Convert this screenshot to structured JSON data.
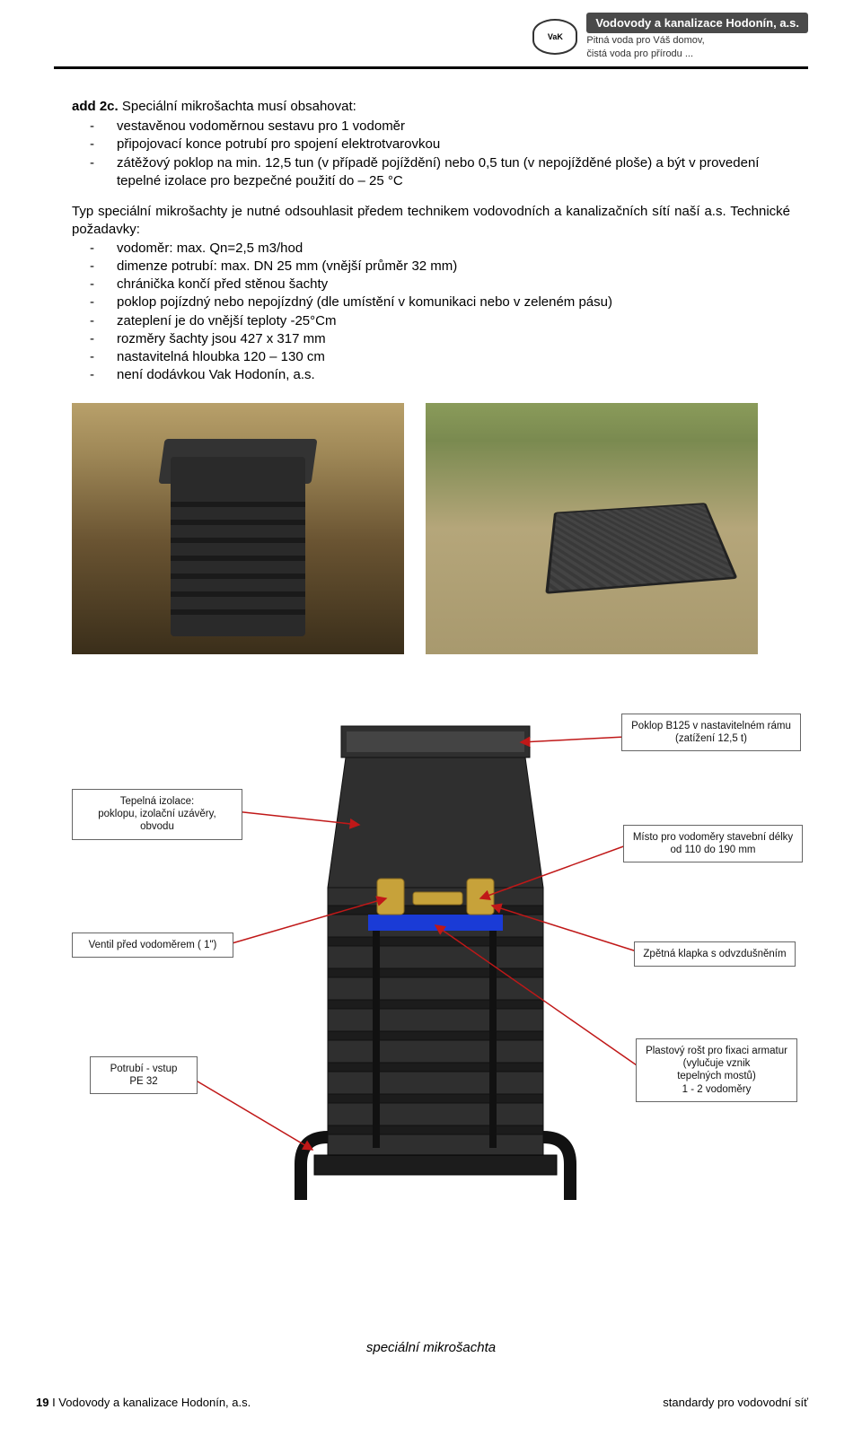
{
  "header": {
    "logo_text": "VaK",
    "brand": "Vodovody a kanalizace Hodonín, a.s.",
    "slogan1": "Pitná voda pro Váš domov,",
    "slogan2": "čistá voda pro přírodu ..."
  },
  "section": {
    "heading_prefix": "add 2c.",
    "heading_text": " Speciální mikrošachta musí obsahovat:",
    "list1": [
      "vestavěnou vodoměrnou sestavu pro 1 vodoměr",
      "připojovací konce potrubí pro spojení elektrotvarovkou",
      "zátěžový poklop na min. 12,5 tun (v případě pojíždění) nebo 0,5 tun (v nepojížděné ploše) a být v provedení tepelné izolace pro bezpečné použití do – 25 °C"
    ],
    "para": "Typ speciální mikrošachty je nutné odsouhlasit předem technikem vodovodních a kanalizačních sítí naší a.s. Technické požadavky:",
    "list2": [
      "vodoměr: max. Qn=2,5 m3/hod",
      "dimenze potrubí: max. DN 25 mm (vnější průměr 32 mm)",
      "chránička končí před stěnou šachty",
      "poklop pojízdný nebo nepojízdný (dle umístění v komunikaci nebo v zeleném pásu)",
      "zateplení je do vnější teploty -25°Cm",
      "rozměry šachty jsou 427 x 317 mm",
      "nastavitelná hloubka 120 – 130 cm",
      "není dodávkou Vak Hodonín, a.s."
    ]
  },
  "diagram": {
    "callouts": {
      "c1": "Tepelná izolace:\npoklopu, izolační uzávěry, obvodu",
      "c2": "Ventil před vodoměrem ( 1\")",
      "c3": "Potrubí - vstup\nPE 32",
      "c4": "Poklop B125 v nastavitelném rámu\n(zatížení 12,5 t)",
      "c5": "Místo pro vodoměry stavební délky\nod 110 do 190 mm",
      "c6": "Zpětná klapka s odvzdušněním",
      "c7": "Plastový rošt pro fixaci armatur\n(vylučuje vznik\ntepelných mostů)\n1 - 2 vodoměry"
    },
    "colors": {
      "shaft_body": "#2f2f2f",
      "shaft_dark": "#1c1c1c",
      "shaft_edge": "#111111",
      "fitting": "#c7a23a",
      "plate": "#1a3bd6",
      "leader": "#c01818",
      "arrowhead": "#c01818"
    }
  },
  "caption": "speciální mikrošachta",
  "footer": {
    "page_num": "19",
    "left_rest": " I Vodovody a kanalizace Hodonín, a.s.",
    "right": "standardy pro vodovodní síť"
  }
}
